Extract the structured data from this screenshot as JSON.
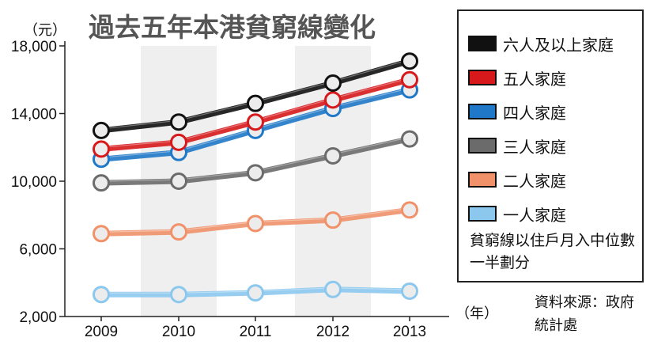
{
  "chart_data": {
    "type": "line",
    "title": "過去五年本港貧窮線變化",
    "ylabel": "（元）",
    "xlabel": "（年）",
    "x": [
      "2009",
      "2010",
      "2011",
      "2012",
      "2013"
    ],
    "ylim": [
      2000,
      18000
    ],
    "yticks": [
      2000,
      6000,
      10000,
      14000,
      18000
    ],
    "ytick_labels": [
      "2,000",
      "6,000",
      "10,000",
      "14,000",
      "18,000"
    ],
    "grid": false,
    "legend_position": "right",
    "series": [
      {
        "name": "六人及以上家庭",
        "color": "#111111",
        "values": [
          13000,
          13500,
          14600,
          15800,
          17100
        ]
      },
      {
        "name": "五人家庭",
        "color": "#d7191c",
        "values": [
          11900,
          12300,
          13500,
          14800,
          16000
        ]
      },
      {
        "name": "四人家庭",
        "color": "#1f78c8",
        "values": [
          11300,
          11700,
          13000,
          14300,
          15400
        ]
      },
      {
        "name": "三人家庭",
        "color": "#6b6b6b",
        "values": [
          9900,
          10000,
          10500,
          11500,
          12500
        ]
      },
      {
        "name": "二人家庭",
        "color": "#f0916a",
        "values": [
          6900,
          7000,
          7500,
          7700,
          8300
        ]
      },
      {
        "name": "一人家庭",
        "color": "#8cc8ee",
        "values": [
          3300,
          3300,
          3400,
          3600,
          3500
        ]
      }
    ],
    "note": "貧窮線以住戶月入中位數一半劃分",
    "source": "資料來源：政府統計處"
  }
}
